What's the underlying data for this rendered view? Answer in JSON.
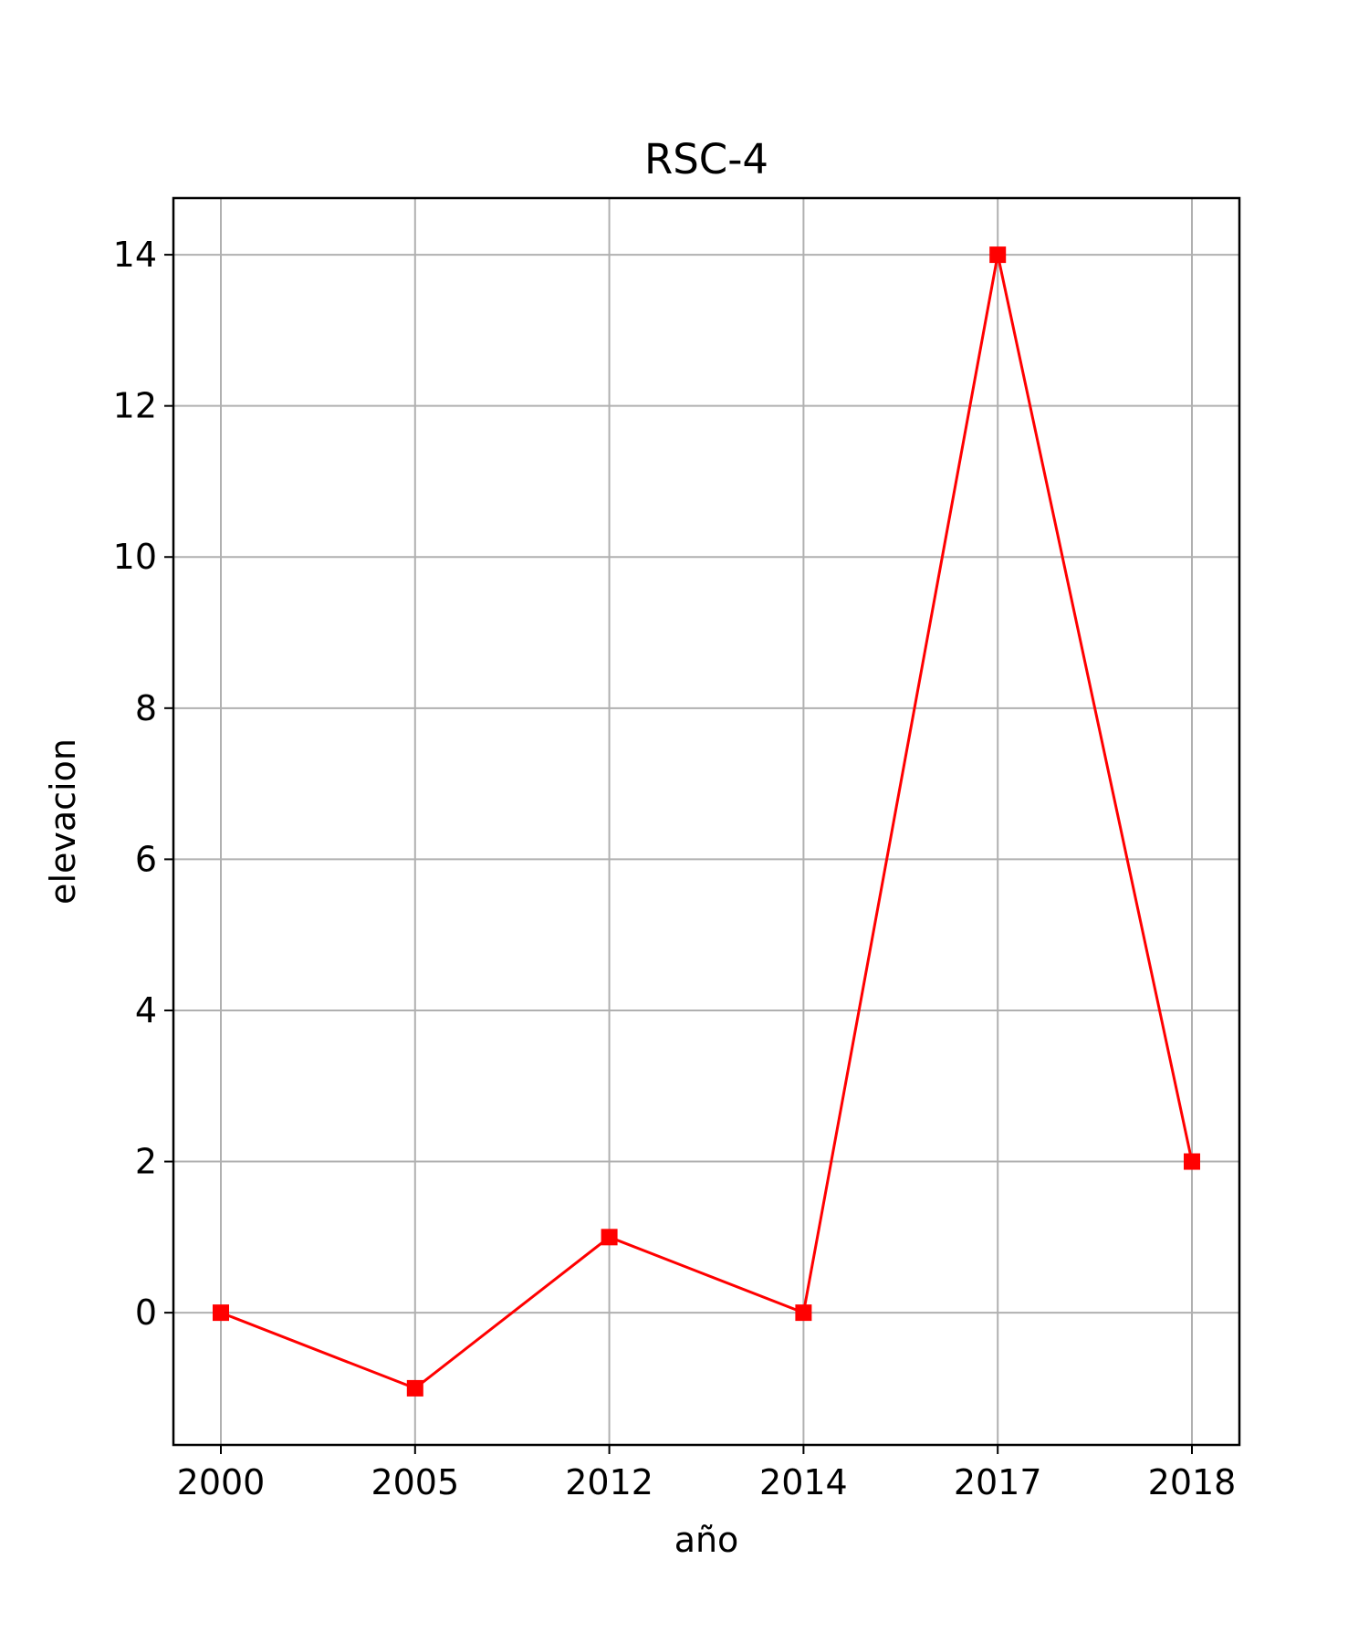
{
  "chart_data": {
    "type": "line",
    "title": "RSC-4",
    "xlabel": "año",
    "ylabel": "elevacion",
    "categories": [
      "2000",
      "2005",
      "2012",
      "2014",
      "2017",
      "2018"
    ],
    "series": [
      {
        "values": [
          0,
          -1,
          1,
          0,
          14,
          2
        ],
        "color": "#ff0000",
        "marker": "square"
      }
    ],
    "ylim": [
      -1.75,
      14.75
    ],
    "yticks": [
      0,
      2,
      4,
      6,
      8,
      10,
      12,
      14
    ],
    "ytick_labels": [
      "0",
      "2",
      "4",
      "6",
      "8",
      "10",
      "12",
      "14"
    ],
    "grid": true,
    "grid_color": "#b0b0b0",
    "legend": "none"
  }
}
